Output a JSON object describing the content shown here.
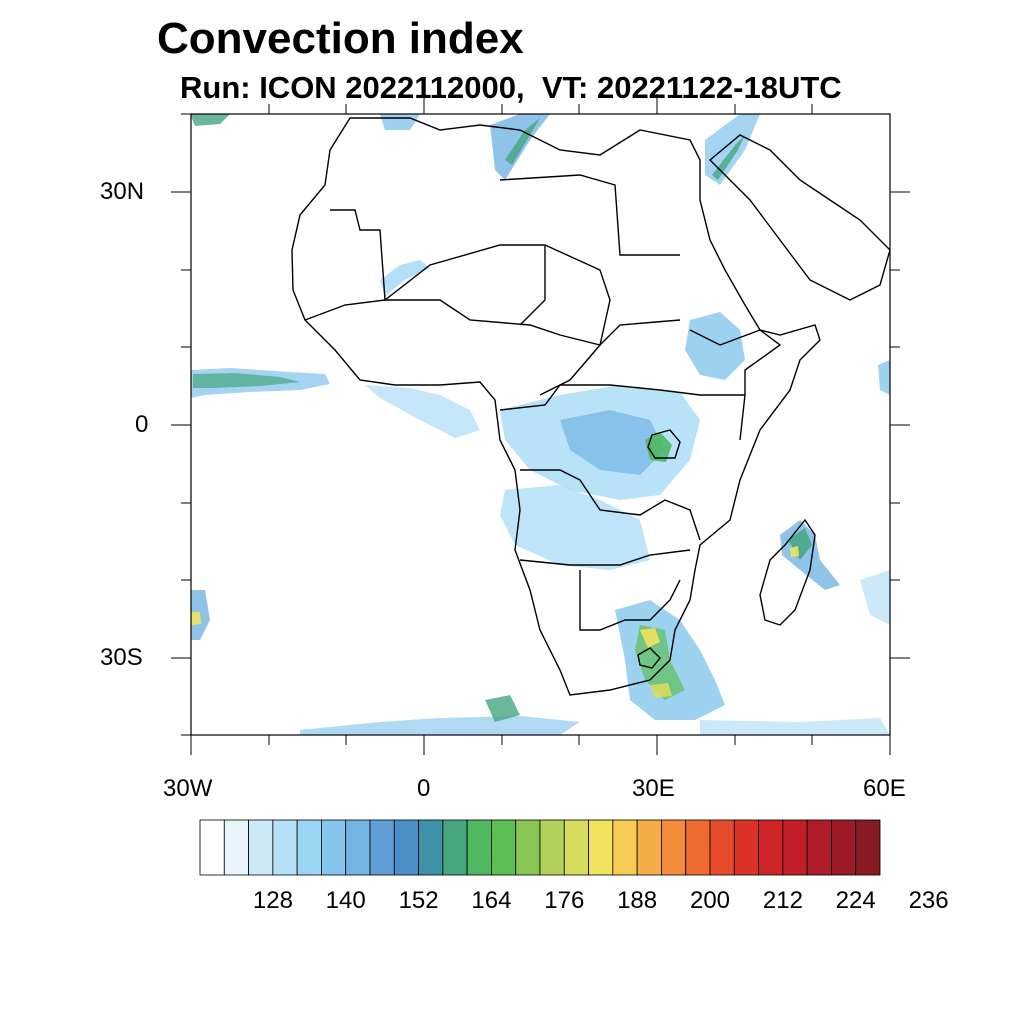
{
  "title": "Convection index",
  "subtitle": "Run: ICON 2022112000,  VT: 20221122-18UTC",
  "map": {
    "lon_range": [
      -30,
      60
    ],
    "lat_range": [
      -40,
      40
    ],
    "y_axis_labels": [
      "30N",
      "0",
      "30S"
    ],
    "x_axis_labels": [
      "30W",
      "0",
      "30E",
      "60E"
    ]
  },
  "colorbar": {
    "colors": [
      "#ffffff",
      "#e8f4fb",
      "#cde9f8",
      "#b6e0f6",
      "#9ad6f4",
      "#85c6ec",
      "#74b4e2",
      "#5f9fd6",
      "#4a8fc7",
      "#3f93a9",
      "#45a680",
      "#4fb860",
      "#5cbf55",
      "#88c653",
      "#b2d05a",
      "#d8dc5c",
      "#f1e35d",
      "#f8cb55",
      "#f5ad48",
      "#f28c3b",
      "#ee6a30",
      "#e74c2a",
      "#dc3129",
      "#cf2529",
      "#c21f2b",
      "#b01c2a",
      "#9c1a28",
      "#881a24"
    ],
    "labels": [
      "128",
      "140",
      "152",
      "164",
      "176",
      "188",
      "200",
      "212",
      "224",
      "236"
    ]
  }
}
